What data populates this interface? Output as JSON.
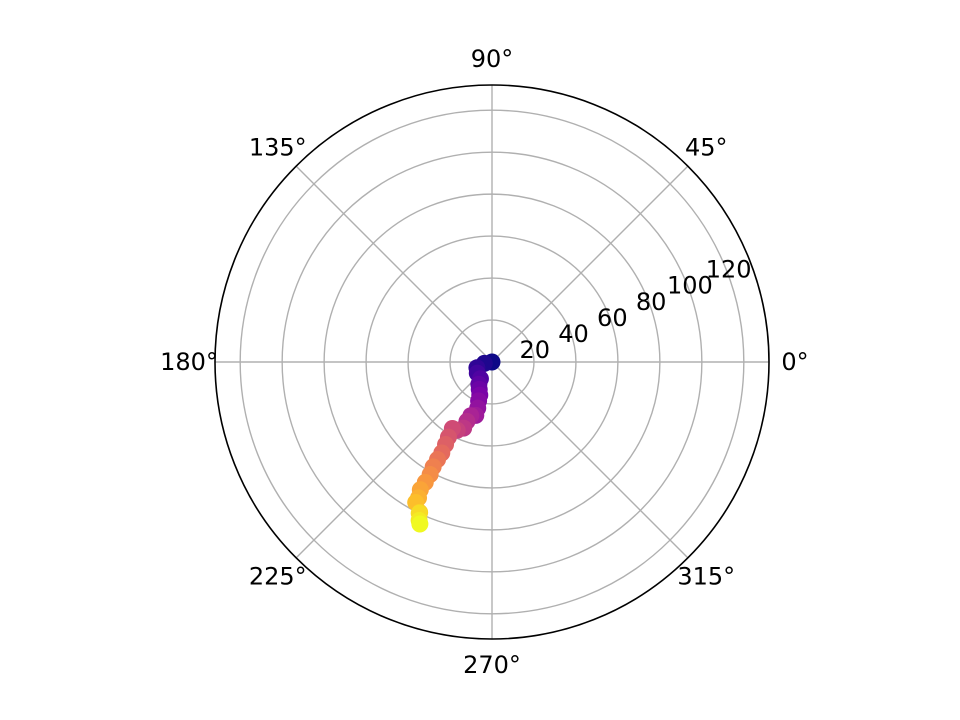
{
  "chart_data": {
    "type": "scatter",
    "subtype": "polar",
    "title": "",
    "angle_unit": "degrees",
    "angle_ticks": [
      "0°",
      "45°",
      "90°",
      "135°",
      "180°",
      "225°",
      "270°",
      "315°"
    ],
    "angle_tick_values": [
      0,
      45,
      90,
      135,
      180,
      225,
      270,
      315
    ],
    "radial_ticks": [
      "20",
      "40",
      "60",
      "80",
      "100",
      "120"
    ],
    "radial_tick_values": [
      20,
      40,
      60,
      80,
      100,
      120
    ],
    "rlim": [
      0,
      132
    ],
    "grid": true,
    "colormap": "plasma",
    "color_encodes": "point order (index)",
    "points": [
      {
        "theta": 225.0,
        "r": 0.0
      },
      {
        "theta": 190.0,
        "r": 3.7
      },
      {
        "theta": 201.0,
        "r": 7.7
      },
      {
        "theta": 217.2,
        "r": 8.8
      },
      {
        "theta": 235.4,
        "r": 9.7
      },
      {
        "theta": 239.4,
        "r": 12.3
      },
      {
        "theta": 245.0,
        "r": 14.4
      },
      {
        "theta": 249.7,
        "r": 16.8
      },
      {
        "theta": 251.0,
        "r": 19.6
      },
      {
        "theta": 252.8,
        "r": 23.0
      },
      {
        "theta": 253.1,
        "r": 26.6
      },
      {
        "theta": 248.5,
        "r": 27.5
      },
      {
        "theta": 247.1,
        "r": 30.7
      },
      {
        "theta": 246.8,
        "r": 34.3
      },
      {
        "theta": 243.0,
        "r": 36.5
      },
      {
        "theta": 239.2,
        "r": 36.9
      },
      {
        "theta": 239.9,
        "r": 41.4
      },
      {
        "theta": 240.6,
        "r": 45.1
      },
      {
        "theta": 241.1,
        "r": 49.5
      },
      {
        "theta": 240.8,
        "r": 53.2
      },
      {
        "theta": 240.7,
        "r": 57.3
      },
      {
        "theta": 241.2,
        "r": 61.2
      },
      {
        "theta": 241.0,
        "r": 65.6
      },
      {
        "theta": 240.7,
        "r": 69.8
      },
      {
        "theta": 241.6,
        "r": 73.6
      },
      {
        "theta": 241.5,
        "r": 76.2
      },
      {
        "theta": 244.3,
        "r": 79.5
      },
      {
        "theta": 244.3,
        "r": 80.0
      },
      {
        "theta": 245.3,
        "r": 83.1
      },
      {
        "theta": 246.0,
        "r": 84.5
      }
    ]
  }
}
